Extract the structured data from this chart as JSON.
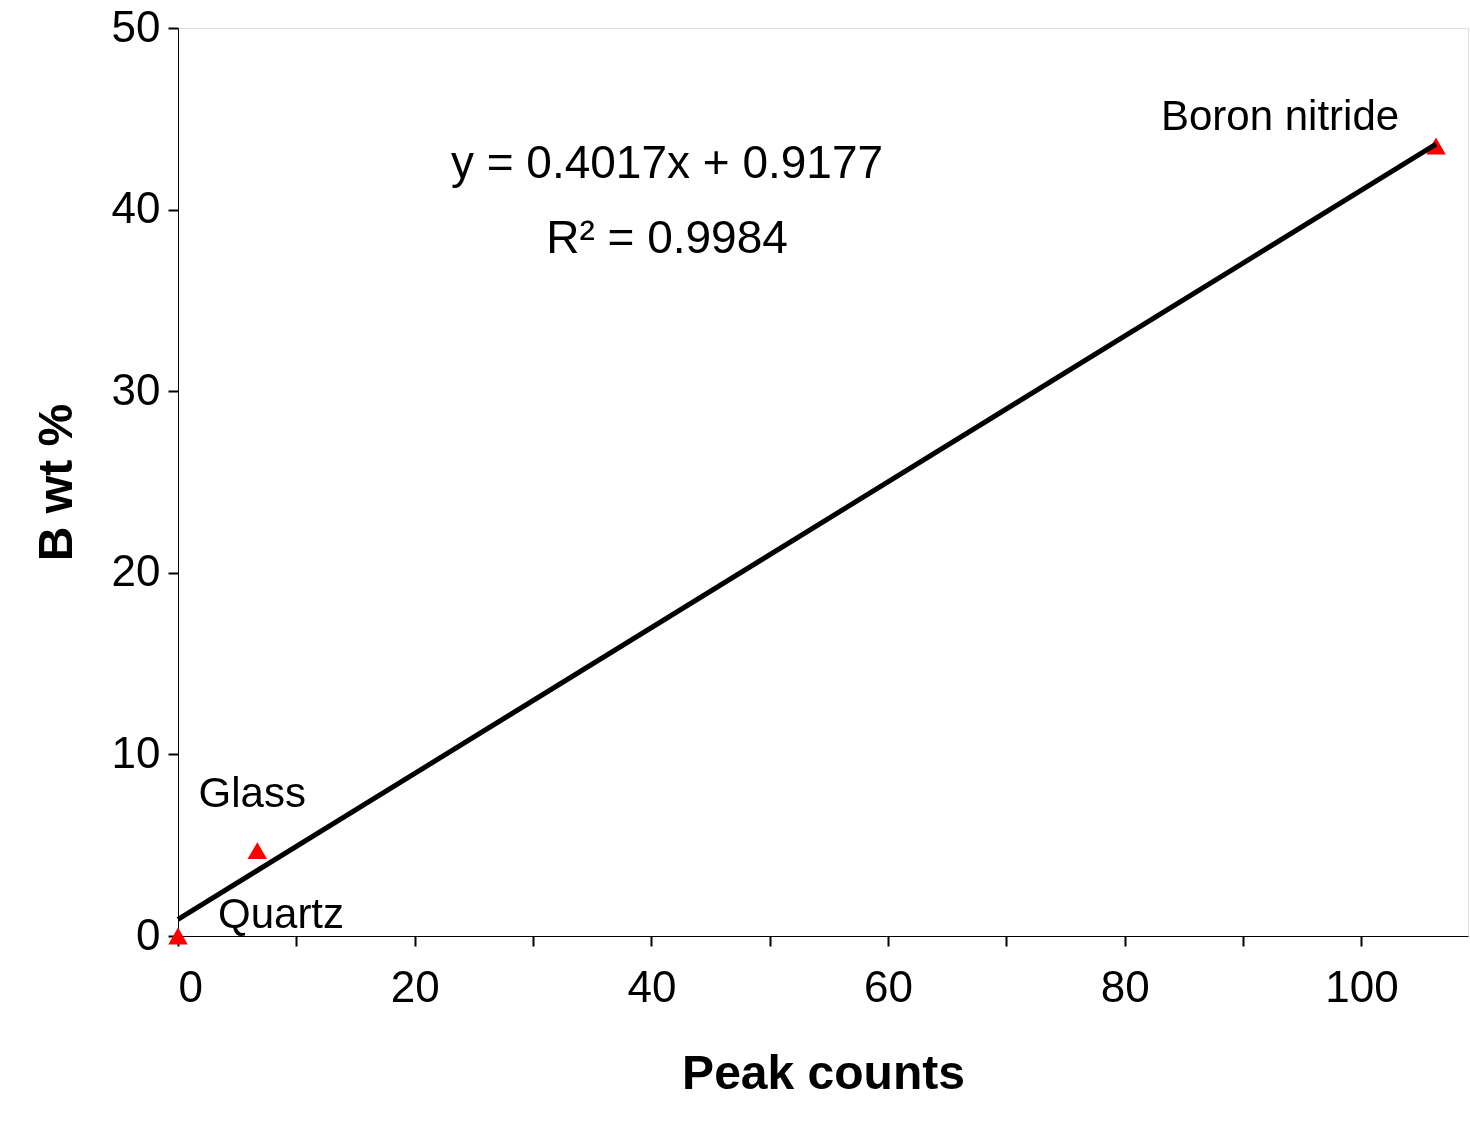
{
  "chart_data": {
    "type": "scatter",
    "xlabel": "Peak counts",
    "ylabel": "B wt %",
    "xlim": [
      0,
      109
    ],
    "ylim": [
      0,
      50
    ],
    "xticks": [
      0,
      {
        "value": 10,
        "label": null
      },
      20,
      {
        "value": 30,
        "label": null
      },
      40,
      {
        "value": 50,
        "label": null
      },
      60,
      {
        "value": 70,
        "label": null
      },
      80,
      {
        "value": 90,
        "label": null
      },
      100
    ],
    "yticks": [
      0,
      10,
      20,
      30,
      40,
      50
    ],
    "grid": false,
    "series": [
      {
        "color": "#ff0000",
        "marker": "triangle",
        "x": [
          0,
          6.7,
          106.3
        ],
        "values": [
          0,
          4.7,
          43.5
        ]
      },
      {
        "type": "line",
        "color": "#000000",
        "line_style": "solid",
        "x": [
          0,
          106.3
        ],
        "values": [
          0.92,
          43.6
        ]
      }
    ],
    "annotations": [
      "y = 0.4017x + 0.9177",
      "R² = 0.9984",
      {
        "text": "Quartz",
        "x": 0,
        "y": 0
      },
      {
        "text": "Glass",
        "x": 6.7,
        "y": 4.7
      },
      {
        "text": "Boron nitride",
        "x": 106.3,
        "y": 43.5
      }
    ]
  }
}
